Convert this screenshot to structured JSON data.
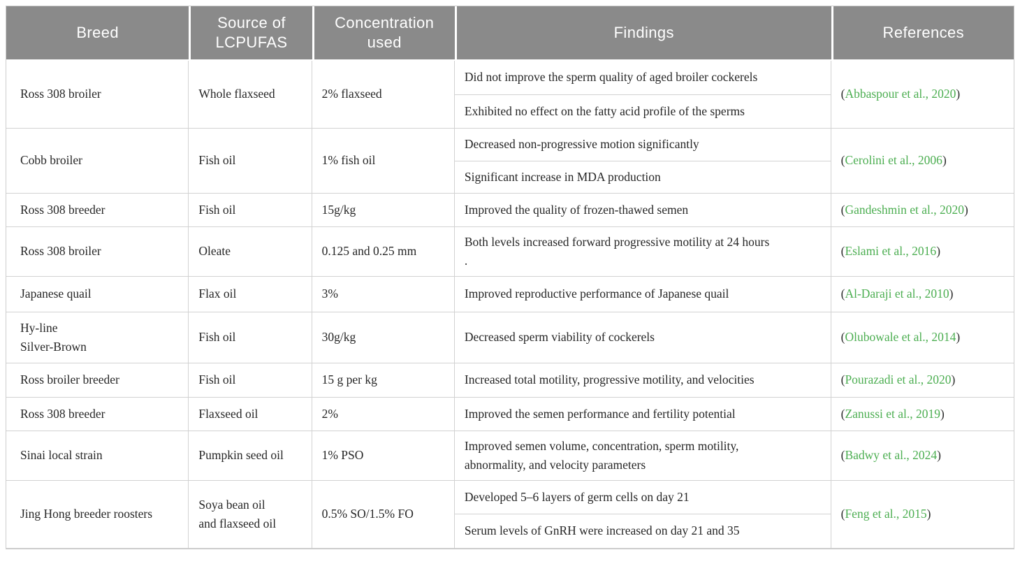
{
  "table": {
    "columns": [
      {
        "label": "Breed"
      },
      {
        "label": "Source of LCPUFAS"
      },
      {
        "label": "Concentration used"
      },
      {
        "label": "Findings"
      },
      {
        "label": "References"
      }
    ],
    "rows": [
      {
        "breed": "Ross 308 broiler",
        "source": "Whole flaxseed",
        "concentration": "2% flaxseed",
        "findings": [
          "Did not improve the sperm quality of aged broiler cockerels",
          "Exhibited no effect on the fatty acid profile of the sperms"
        ],
        "reference": "Abbaspour et al., 2020"
      },
      {
        "breed": "Cobb broiler",
        "source": "Fish oil",
        "concentration": "1% fish oil",
        "findings": [
          "Decreased non-progressive motion significantly",
          "Significant increase in MDA production"
        ],
        "reference": "Cerolini et al., 2006"
      },
      {
        "breed": "Ross 308 breeder",
        "source": "Fish oil",
        "concentration": "15g/kg",
        "findings": [
          "Improved the quality of frozen-thawed semen"
        ],
        "reference": "Gandeshmin et al., 2020"
      },
      {
        "breed": "Ross 308 broiler",
        "source": "Oleate",
        "concentration": "0.125 and 0.25 mm",
        "findings": [
          "Both levels increased forward progressive motility at 24 hours\n."
        ],
        "reference": "Eslami et al., 2016"
      },
      {
        "breed": "Japanese quail",
        "source": "Flax oil",
        "concentration": "3%",
        "findings": [
          "Improved reproductive performance of Japanese quail"
        ],
        "reference": "Al-Daraji et al., 2010"
      },
      {
        "breed": "Hy-line\nSilver-Brown",
        "source": "Fish oil",
        "concentration": "30g/kg",
        "findings": [
          "Decreased sperm viability of cockerels"
        ],
        "reference": "Olubowale et al., 2014"
      },
      {
        "breed": "Ross broiler breeder",
        "source": "Fish oil",
        "concentration": "15 g per kg",
        "findings": [
          "Increased total motility, progressive motility, and velocities"
        ],
        "reference": "Pourazadi et al., 2020"
      },
      {
        "breed": "Ross 308 breeder",
        "source": "Flaxseed oil",
        "concentration": "2%",
        "findings": [
          "Improved the semen performance and fertility potential"
        ],
        "reference": "Zanussi et al., 2019"
      },
      {
        "breed": "Sinai local strain",
        "source": "Pumpkin seed oil",
        "concentration": "1% PSO",
        "findings": [
          "Improved semen volume, concentration, sperm motility,\nabnormality, and velocity parameters"
        ],
        "reference": "Badwy et al., 2024"
      },
      {
        "breed": "Jing Hong breeder roosters",
        "source": "Soya bean oil\nand flaxseed oil",
        "concentration": "0.5% SO/1.5% FO",
        "findings": [
          "Developed 5–6 layers of germ cells on day 21",
          "Serum levels of GnRH were increased on day 21 and 35"
        ],
        "reference": "Feng et al., 2015"
      }
    ],
    "colors": {
      "header_bg": "#8a8a8a",
      "header_text": "#ffffff",
      "body_text": "#262626",
      "reference_link": "#4cae51",
      "grid_line": "#d2d2d2"
    }
  },
  "citation": {
    "open": "(",
    "close": ")"
  }
}
